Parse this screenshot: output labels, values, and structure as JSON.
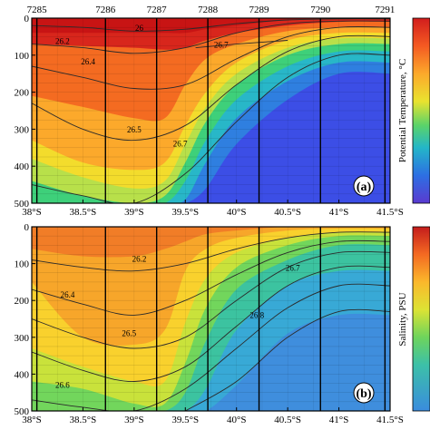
{
  "chart_data": [
    {
      "type": "heatmap",
      "panel_label": "(a)",
      "colorbar_label": "Potential Temperature, °C",
      "stations": [
        "7285",
        "7286",
        "7287",
        "7288",
        "7289",
        "7290",
        "7291"
      ],
      "station_lat": [
        38.05,
        38.72,
        39.22,
        39.72,
        40.22,
        40.82,
        41.45
      ],
      "x_ticks": [
        "38°S",
        "38.5°S",
        "39°S",
        "39.5°S",
        "40°S",
        "40.5°S",
        "41°S",
        "41.5°S"
      ],
      "x_values": [
        38.0,
        38.5,
        39.0,
        39.5,
        40.0,
        40.5,
        41.0,
        41.5
      ],
      "y_ticks": [
        "0",
        "100",
        "200",
        "300",
        "400",
        "500"
      ],
      "y_values": [
        0,
        100,
        200,
        300,
        400,
        500
      ],
      "xlim": [
        38.0,
        41.5
      ],
      "ylim": [
        0,
        500
      ],
      "y_direction": "depth increases downward",
      "field_levels": [
        {
          "x": [
            38.0,
            38.5,
            39.0,
            39.3,
            39.5,
            39.7,
            40.0,
            40.5,
            41.0,
            41.5
          ],
          "y": [
            40,
            40,
            40,
            40,
            40,
            30,
            20,
            5,
            0,
            0
          ],
          "color": "#d8261c"
        },
        {
          "x": [
            38.0,
            38.5,
            39.0,
            39.3,
            39.5,
            39.7,
            40.0,
            40.5,
            41.0,
            41.5
          ],
          "y": [
            70,
            75,
            80,
            85,
            80,
            60,
            40,
            20,
            10,
            10
          ],
          "color": "#f46b21"
        },
        {
          "x": [
            38.0,
            38.5,
            39.0,
            39.3,
            39.5,
            39.7,
            40.0,
            40.5,
            41.0,
            41.5
          ],
          "y": [
            210,
            240,
            270,
            270,
            180,
            110,
            70,
            35,
            25,
            25
          ],
          "color": "#fca92b"
        },
        {
          "x": [
            38.0,
            38.5,
            39.0,
            39.3,
            39.5,
            39.7,
            40.0,
            40.5,
            41.0,
            41.5
          ],
          "y": [
            330,
            390,
            410,
            390,
            290,
            200,
            120,
            60,
            40,
            40
          ],
          "color": "#f3dc2c"
        },
        {
          "x": [
            38.0,
            38.5,
            39.0,
            39.3,
            39.5,
            39.7,
            40.0,
            40.5,
            41.0,
            41.5
          ],
          "y": [
            380,
            430,
            460,
            440,
            340,
            240,
            150,
            80,
            55,
            55
          ],
          "color": "#b8e04a"
        },
        {
          "x": [
            38.0,
            38.5,
            39.0,
            39.3,
            39.5,
            39.7,
            40.0,
            40.5,
            41.0,
            41.5
          ],
          "y": [
            440,
            480,
            500,
            480,
            390,
            280,
            180,
            100,
            70,
            70
          ],
          "color": "#3ed07a"
        },
        {
          "x": [
            38.0,
            38.5,
            39.0,
            39.3,
            39.5,
            39.7,
            40.0,
            40.5,
            41.0,
            41.5
          ],
          "y": [
            500,
            500,
            500,
            500,
            440,
            330,
            220,
            130,
            90,
            90
          ],
          "color": "#28b7c8"
        },
        {
          "x": [
            38.0,
            38.5,
            39.0,
            39.3,
            39.5,
            39.7,
            40.0,
            40.5,
            41.0,
            41.5
          ],
          "y": [
            500,
            500,
            500,
            500,
            490,
            390,
            270,
            170,
            120,
            120
          ],
          "color": "#2f7fe0"
        },
        {
          "x": [
            38.0,
            38.5,
            39.0,
            39.3,
            39.5,
            39.7,
            40.0,
            40.5,
            41.0,
            41.5
          ],
          "y": [
            500,
            500,
            500,
            500,
            500,
            460,
            340,
            220,
            150,
            150
          ],
          "color": "#3c4ee6"
        }
      ],
      "field_base_color": "#c81414",
      "isopycnals": [
        {
          "label": "26",
          "x": [
            38.0,
            38.5,
            39.0,
            39.5,
            40.0,
            40.5,
            41.0,
            41.5
          ],
          "y": [
            20,
            25,
            35,
            30,
            15,
            5,
            2,
            2
          ],
          "label_at": [
            39.05,
            27
          ]
        },
        {
          "label": "26.2",
          "x": [
            38.0,
            38.5,
            39.0,
            39.5,
            40.0,
            40.5,
            41.0,
            41.5
          ],
          "y": [
            70,
            80,
            95,
            80,
            40,
            15,
            8,
            8
          ],
          "label_at": [
            38.3,
            62
          ]
        },
        {
          "label": "26.4",
          "x": [
            38.0,
            38.5,
            39.0,
            39.5,
            40.0,
            40.5,
            41.0,
            41.5
          ],
          "y": [
            130,
            160,
            190,
            180,
            110,
            50,
            25,
            25
          ],
          "label_at": [
            38.55,
            118
          ]
        },
        {
          "label": "26.5",
          "x": [
            38.0,
            38.5,
            39.0,
            39.5,
            40.0,
            40.5,
            41.0,
            41.5
          ],
          "y": [
            230,
            300,
            330,
            290,
            180,
            90,
            50,
            50
          ],
          "label_at": [
            39.0,
            302
          ]
        },
        {
          "label": "26.7",
          "x": [
            38.0,
            38.5,
            39.0,
            39.5,
            40.0,
            40.5,
            41.0,
            41.5
          ],
          "y": [
            450,
            480,
            500,
            420,
            280,
            160,
            100,
            100
          ],
          "label_at": [
            39.45,
            340
          ]
        },
        {
          "label": "26.7",
          "x": [
            39.6,
            40.0,
            40.5
          ],
          "y": [
            80,
            70,
            60
          ],
          "label_at": [
            39.85,
            72
          ]
        }
      ]
    },
    {
      "type": "heatmap",
      "panel_label": "(b)",
      "colorbar_label": "Salinity, PSU",
      "x_ticks": [
        "38°S",
        "38.5°S",
        "39°S",
        "39.5°S",
        "40°S",
        "40.5°S",
        "41°S",
        "41.5°S"
      ],
      "x_values": [
        38.0,
        38.5,
        39.0,
        39.5,
        40.0,
        40.5,
        41.0,
        41.5
      ],
      "y_ticks": [
        "0",
        "100",
        "200",
        "300",
        "400",
        "500"
      ],
      "y_values": [
        0,
        100,
        200,
        300,
        400,
        500
      ],
      "xlim": [
        38.0,
        41.5
      ],
      "ylim": [
        0,
        500
      ],
      "station_lat": [
        38.05,
        38.72,
        39.22,
        39.72,
        40.22,
        40.82,
        41.45
      ],
      "field_levels": [
        {
          "x": [
            38.0,
            38.5,
            39.0,
            39.3,
            39.5,
            39.7,
            40.0,
            40.5,
            41.0,
            41.5
          ],
          "y": [
            60,
            80,
            80,
            60,
            40,
            20,
            10,
            0,
            0,
            0
          ],
          "color": "#f7a62a"
        },
        {
          "x": [
            38.0,
            38.5,
            39.0,
            39.3,
            39.5,
            39.7,
            40.0,
            40.5,
            41.0,
            41.5
          ],
          "y": [
            150,
            300,
            320,
            280,
            120,
            60,
            30,
            10,
            5,
            5
          ],
          "color": "#f9d12d"
        },
        {
          "x": [
            38.0,
            38.5,
            39.0,
            39.3,
            39.5,
            39.7,
            40.0,
            40.5,
            41.0,
            41.5
          ],
          "y": [
            330,
            380,
            420,
            420,
            260,
            140,
            70,
            30,
            15,
            15
          ],
          "color": "#c9e23b"
        },
        {
          "x": [
            38.0,
            38.5,
            39.0,
            39.3,
            39.5,
            39.7,
            40.0,
            40.5,
            41.0,
            41.5
          ],
          "y": [
            420,
            440,
            480,
            480,
            370,
            220,
            110,
            50,
            25,
            25
          ],
          "color": "#72d65c"
        },
        {
          "x": [
            38.0,
            38.5,
            39.0,
            39.3,
            39.5,
            39.7,
            40.0,
            40.5,
            41.0,
            41.5
          ],
          "y": [
            500,
            500,
            500,
            500,
            450,
            310,
            170,
            90,
            50,
            50
          ],
          "color": "#3cc3a0"
        },
        {
          "x": [
            38.0,
            38.5,
            39.0,
            39.3,
            39.5,
            39.7,
            40.0,
            40.5,
            41.0,
            41.5
          ],
          "y": [
            500,
            500,
            500,
            500,
            500,
            440,
            280,
            160,
            120,
            120
          ],
          "color": "#38a9d6"
        },
        {
          "x": [
            38.0,
            38.5,
            39.0,
            39.3,
            39.5,
            39.7,
            40.0,
            40.5,
            41.0,
            41.5
          ],
          "y": [
            500,
            500,
            500,
            500,
            500,
            500,
            430,
            290,
            240,
            240
          ],
          "color": "#3f8edd"
        }
      ],
      "field_base_color": "#f17d27",
      "isopycnals": [
        {
          "label": "26.2",
          "x": [
            38.0,
            38.5,
            39.0,
            39.5,
            40.0,
            40.5,
            41.0,
            41.5
          ],
          "y": [
            90,
            110,
            120,
            100,
            60,
            30,
            15,
            15
          ],
          "label_at": [
            39.05,
            88
          ]
        },
        {
          "label": "26.4",
          "x": [
            38.0,
            38.5,
            39.0,
            39.5,
            40.0,
            40.5,
            41.0,
            41.5
          ],
          "y": [
            170,
            210,
            240,
            200,
            130,
            70,
            40,
            40
          ],
          "label_at": [
            38.35,
            185
          ]
        },
        {
          "label": "26.5",
          "x": [
            38.0,
            38.5,
            39.0,
            39.5,
            40.0,
            40.5,
            41.0,
            41.5
          ],
          "y": [
            250,
            300,
            330,
            300,
            200,
            110,
            70,
            70
          ],
          "label_at": [
            38.95,
            290
          ]
        },
        {
          "label": "26.6",
          "x": [
            38.0,
            38.5,
            39.0,
            39.5,
            40.0,
            40.5,
            41.0,
            41.5
          ],
          "y": [
            340,
            390,
            420,
            380,
            270,
            160,
            110,
            110
          ],
          "label_at": [
            38.3,
            430
          ]
        },
        {
          "label": "26.7",
          "x": [
            38.0,
            38.5,
            39.0,
            39.5,
            40.0,
            40.5,
            41.0,
            41.5
          ],
          "y": [
            470,
            490,
            500,
            440,
            330,
            220,
            160,
            160
          ],
          "label_at": [
            40.55,
            112
          ]
        },
        {
          "label": "26.8",
          "x": [
            39.5,
            40.0,
            40.5,
            41.0,
            41.5
          ],
          "y": [
            500,
            420,
            300,
            230,
            230
          ],
          "label_at": [
            40.2,
            240
          ]
        }
      ]
    }
  ]
}
